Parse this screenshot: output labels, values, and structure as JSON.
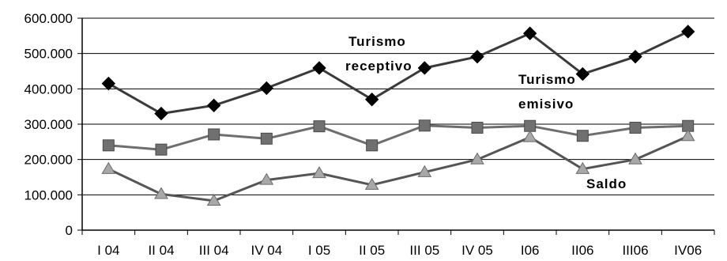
{
  "chart_data": {
    "type": "line",
    "categories": [
      "I 04",
      "II 04",
      "III 04",
      "IV  04",
      "I 05",
      "II 05",
      "III 05",
      "IV  05",
      "I06",
      "II06",
      "III06",
      "IV06"
    ],
    "ylim": [
      0,
      600000
    ],
    "yticks": [
      0,
      100000,
      200000,
      300000,
      400000,
      500000,
      600000
    ],
    "ytick_labels": [
      "0",
      "100.000",
      "200.000",
      "300.000",
      "400.000",
      "500.000",
      "600.000"
    ],
    "grid": true,
    "legend": "none",
    "series": [
      {
        "values": [
          415000,
          330000,
          353000,
          402000,
          459000,
          370000,
          459000,
          491000,
          557000,
          442000,
          491000,
          562000
        ],
        "color": "#3a3a3a",
        "marker": "diamond",
        "marker_color": "#000000"
      },
      {
        "values": [
          240000,
          228000,
          271000,
          259000,
          294000,
          240000,
          296000,
          290000,
          295000,
          267000,
          290000,
          295000
        ],
        "color": "#6e6e6e",
        "marker": "square",
        "marker_color": "#707070"
      },
      {
        "values": [
          173000,
          102000,
          83000,
          142000,
          161000,
          128000,
          164000,
          200000,
          263000,
          173000,
          200000,
          266000
        ],
        "color": "#555555",
        "marker": "triangle",
        "marker_color": "#a8a8a8"
      }
    ],
    "annotations": [
      {
        "lines": [
          "Turismo",
          "receptivo"
        ]
      },
      {
        "lines": [
          "Turismo",
          "emisivo"
        ]
      },
      {
        "lines": [
          "Saldo"
        ]
      }
    ]
  }
}
